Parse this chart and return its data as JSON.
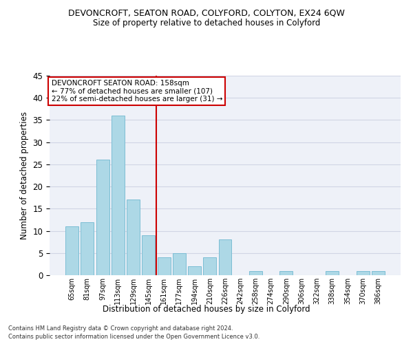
{
  "title1": "DEVONCROFT, SEATON ROAD, COLYFORD, COLYTON, EX24 6QW",
  "title2": "Size of property relative to detached houses in Colyford",
  "xlabel": "Distribution of detached houses by size in Colyford",
  "ylabel": "Number of detached properties",
  "categories": [
    "65sqm",
    "81sqm",
    "97sqm",
    "113sqm",
    "129sqm",
    "145sqm",
    "161sqm",
    "177sqm",
    "194sqm",
    "210sqm",
    "226sqm",
    "242sqm",
    "258sqm",
    "274sqm",
    "290sqm",
    "306sqm",
    "322sqm",
    "338sqm",
    "354sqm",
    "370sqm",
    "386sqm"
  ],
  "values": [
    11,
    12,
    26,
    36,
    17,
    9,
    4,
    5,
    2,
    4,
    8,
    0,
    1,
    0,
    1,
    0,
    0,
    1,
    0,
    1,
    1
  ],
  "bar_color": "#add8e6",
  "bar_edge_color": "#7bbdd4",
  "vline_x": 5.5,
  "vline_color": "#cc0000",
  "annotation_title": "DEVONCROFT SEATON ROAD: 158sqm",
  "annotation_line1": "← 77% of detached houses are smaller (107)",
  "annotation_line2": "22% of semi-detached houses are larger (31) →",
  "annotation_box_color": "#cc0000",
  "ylim": [
    0,
    45
  ],
  "yticks": [
    0,
    5,
    10,
    15,
    20,
    25,
    30,
    35,
    40,
    45
  ],
  "footer1": "Contains HM Land Registry data © Crown copyright and database right 2024.",
  "footer2": "Contains public sector information licensed under the Open Government Licence v3.0.",
  "background_color": "#eef1f8",
  "grid_color": "#d0d5e5"
}
